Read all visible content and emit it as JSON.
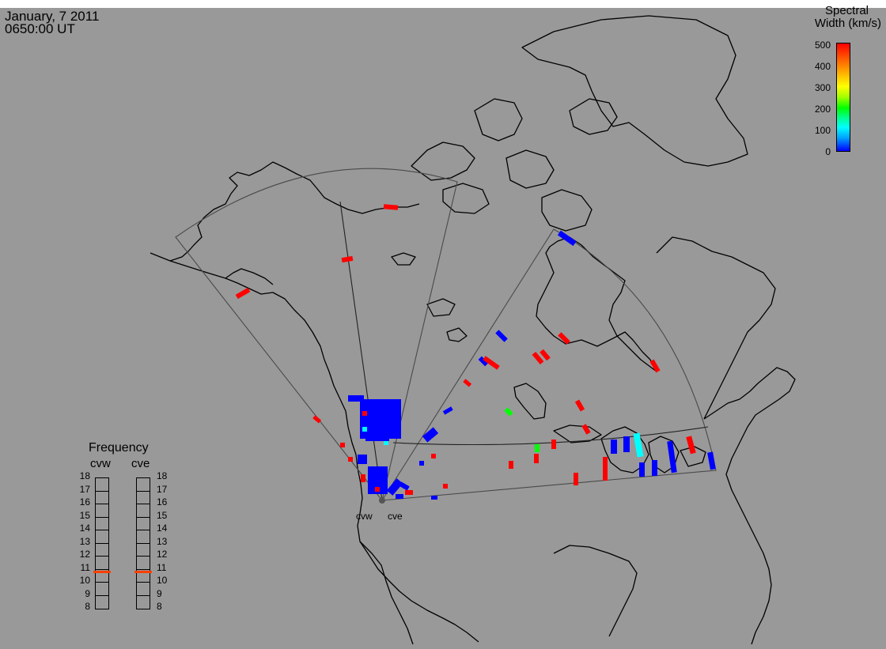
{
  "header": {
    "date": "January, 7 2011",
    "time": "0650:00 UT"
  },
  "colorbar": {
    "title_line1": "Spectral",
    "title_line2": "Width (km/s)",
    "ticks": [
      "500",
      "400",
      "300",
      "200",
      "100",
      "0"
    ],
    "range": [
      0,
      500
    ],
    "colors": [
      "#0000ff",
      "#00ffff",
      "#00ff00",
      "#ffff00",
      "#ff8000",
      "#ff0000"
    ]
  },
  "frequency_panel": {
    "title": "Frequency",
    "radars": [
      {
        "name": "cvw",
        "freq_mhz": 10.8
      },
      {
        "name": "cve",
        "freq_mhz": 10.8
      }
    ],
    "scale": [
      "18",
      "17",
      "16",
      "15",
      "14",
      "13",
      "12",
      "11",
      "10",
      "9",
      "8"
    ],
    "marker_color": "#ff4000"
  },
  "radars": [
    {
      "name": "cvw"
    },
    {
      "name": "cve"
    }
  ],
  "colors": {
    "background": "#999999",
    "coast": "#000000",
    "fov": "#555555"
  }
}
